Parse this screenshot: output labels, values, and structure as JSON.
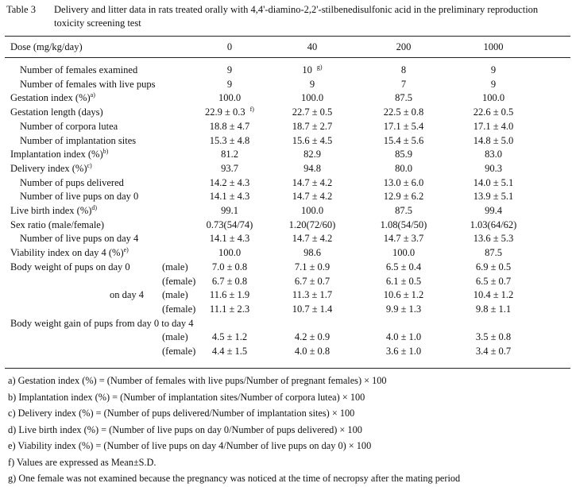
{
  "caption": {
    "number": "Table 3",
    "text": "Delivery and litter data in rats treated orally with 4,4'-diamino-2,2'-stilbenedisulfonic acid in the preliminary reproduction toxicity screening test"
  },
  "header": {
    "label": "Dose (mg/kg/day)",
    "doses": [
      "0",
      "40",
      "200",
      "1000"
    ]
  },
  "rows": [
    {
      "label": "Number of females examined",
      "indent": 1,
      "values": [
        "9",
        "10",
        "8",
        "9"
      ],
      "sups": [
        "",
        "g)",
        "",
        ""
      ]
    },
    {
      "label": "Number of females with live pups",
      "indent": 1,
      "values": [
        "9",
        "9",
        "7",
        "9"
      ]
    },
    {
      "label": "Gestation index (%)",
      "label_sup": "a)",
      "indent": 0,
      "values": [
        "100.0",
        "100.0",
        "87.5",
        "100.0"
      ]
    },
    {
      "label": "Gestation length (days)",
      "indent": 0,
      "values": [
        "22.9 ± 0.3",
        "22.7 ± 0.5",
        "22.5 ± 0.8",
        "22.6 ± 0.5"
      ],
      "sups": [
        "f)",
        "",
        "",
        ""
      ]
    },
    {
      "label": "Number of corpora lutea",
      "indent": 1,
      "values": [
        "18.8 ± 4.7",
        "18.7 ± 2.7",
        "17.1 ± 5.4",
        "17.1 ± 4.0"
      ]
    },
    {
      "label": "Number of implantation sites",
      "indent": 1,
      "values": [
        "15.3 ± 4.8",
        "15.6 ± 4.5",
        "15.4 ± 5.6",
        "14.8 ± 5.0"
      ]
    },
    {
      "label": "Implantation index (%)",
      "label_sup": "b)",
      "indent": 0,
      "values": [
        "81.2",
        "82.9",
        "85.9",
        "83.0"
      ]
    },
    {
      "label": "Delivery index (%)",
      "label_sup": "c)",
      "indent": 0,
      "values": [
        "93.7",
        "94.8",
        "80.0",
        "90.3"
      ]
    },
    {
      "label": "Number of pups delivered",
      "indent": 1,
      "values": [
        "14.2 ± 4.3",
        "14.7 ± 4.2",
        "13.0 ± 6.0",
        "14.0 ± 5.1"
      ]
    },
    {
      "label": "Number of live pups on day 0",
      "indent": 1,
      "values": [
        "14.1 ± 4.3",
        "14.7 ± 4.2",
        "12.9 ± 6.2",
        "13.9 ± 5.1"
      ]
    },
    {
      "label": "Live birth index (%)",
      "label_sup": "d)",
      "indent": 0,
      "values": [
        "99.1",
        "100.0",
        "87.5",
        "99.4"
      ]
    },
    {
      "label": "Sex ratio (male/female)",
      "indent": 0,
      "values": [
        "0.73(54/74)",
        "1.20(72/60)",
        "1.08(54/50)",
        "1.03(64/62)"
      ]
    },
    {
      "label": "Number of live pups on day 4",
      "indent": 1,
      "values": [
        "14.1 ± 4.3",
        "14.7 ± 4.2",
        "14.7 ± 3.7",
        "13.6 ± 5.3"
      ]
    },
    {
      "label": "Viability index on day 4 (%)",
      "label_sup": "e)",
      "indent": 0,
      "values": [
        "100.0",
        "98.6",
        "100.0",
        "87.5"
      ]
    },
    {
      "label": "Body weight of pups on day 0",
      "sub": "(male)",
      "sub_indent": 3,
      "indent": 0,
      "values": [
        "7.0 ± 0.8",
        "7.1 ± 0.9",
        "6.5 ± 0.4",
        "6.9 ± 0.5"
      ]
    },
    {
      "label": "",
      "sub": "(female)",
      "sub_indent": 3,
      "indent": 0,
      "values": [
        "6.7 ± 0.8",
        "6.7 ± 0.7",
        "6.1 ± 0.5",
        "6.5 ± 0.7"
      ]
    },
    {
      "label": "on day 4",
      "label_indent": 2,
      "sub": "(male)",
      "sub_indent": 3,
      "indent": 0,
      "values": [
        "11.6 ± 1.9",
        "11.3 ± 1.7",
        "10.6 ± 1.2",
        "10.4 ± 1.2"
      ]
    },
    {
      "label": "",
      "sub": "(female)",
      "sub_indent": 3,
      "indent": 0,
      "values": [
        "11.1 ± 2.3",
        "10.7 ± 1.4",
        "9.9 ± 1.3",
        "9.8 ± 1.1"
      ]
    },
    {
      "label": "Body weight gain of pups from day 0 to day 4",
      "indent": 0,
      "values": [
        "",
        "",
        "",
        ""
      ]
    },
    {
      "label": "",
      "sub": "(male)",
      "sub_indent": 3,
      "indent": 0,
      "values": [
        "4.5 ± 1.2",
        "4.2 ± 0.9",
        "4.0 ± 1.0",
        "3.5 ± 0.8"
      ]
    },
    {
      "label": "",
      "sub": "(female)",
      "sub_indent": 3,
      "indent": 0,
      "values": [
        "4.4 ± 1.5",
        "4.0 ± 0.8",
        "3.6 ± 1.0",
        "3.4 ± 0.7"
      ]
    }
  ],
  "footnotes": [
    "a) Gestation index (%) = (Number of females with live pups/Number of pregnant females) × 100",
    "b) Implantation index (%) = (Number of implantation sites/Number of corpora lutea) × 100",
    "c) Delivery index (%) = (Number of pups delivered/Number of implantation sites) × 100",
    "d) Live birth index (%) = (Number of live pups on day 0/Number of pups delivered) × 100",
    "e) Viability index (%) = (Number of live pups on day 4/Number of live pups on day 0) × 100",
    "f) Values are expressed as Mean±S.D.",
    "g) One female was not examined because the pregnancy was noticed at the time of necropsy after the mating period"
  ]
}
